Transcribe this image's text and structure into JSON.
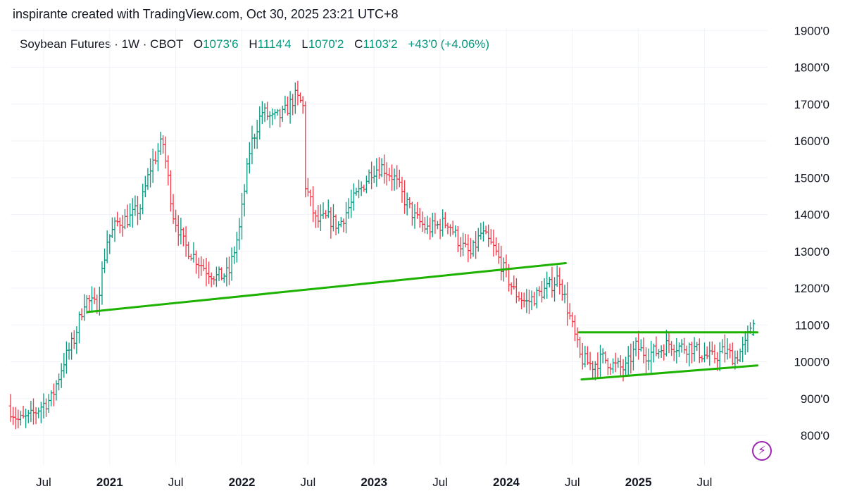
{
  "header": {
    "text": "inspirante created with TradingView.com, Oct 30, 2025 23:21 UTC+8"
  },
  "legend": {
    "symbol": "Soybean Futures · 1W · CBOT",
    "open_label": "O",
    "open": "1073'6",
    "high_label": "H",
    "high": "1114'4",
    "low_label": "L",
    "low": "1070'2",
    "close_label": "C",
    "close": "1103'2",
    "change": "+43'0 (+4.06%)"
  },
  "colors": {
    "up": "#089981",
    "down": "#f23645",
    "trendline": "#1db100",
    "grid": "#f0f3fa",
    "badge": "#9c27b0"
  },
  "icons": {
    "badge": "lightning-icon"
  },
  "chart_data": {
    "type": "ohlc",
    "title": "Soybean Futures · 1W · CBOT",
    "y_axis": {
      "side": "right",
      "range": [
        750,
        1900
      ],
      "ticks": [
        "800'0",
        "900'0",
        "1000'0",
        "1100'0",
        "1200'0",
        "1300'0",
        "1400'0",
        "1500'0",
        "1600'0",
        "1700'0",
        "1800'0",
        "1900'0"
      ],
      "tick_values": [
        800,
        900,
        1000,
        1100,
        1200,
        1300,
        1400,
        1500,
        1600,
        1700,
        1800,
        1900
      ]
    },
    "x_axis": {
      "range": [
        2020.25,
        2025.95
      ],
      "ticks": [
        {
          "label": "Jul",
          "t": 2020.5,
          "year": false
        },
        {
          "label": "2021",
          "t": 2021.0,
          "year": true
        },
        {
          "label": "Jul",
          "t": 2021.5,
          "year": false
        },
        {
          "label": "2022",
          "t": 2022.0,
          "year": true
        },
        {
          "label": "Jul",
          "t": 2022.5,
          "year": false
        },
        {
          "label": "2023",
          "t": 2023.0,
          "year": true
        },
        {
          "label": "Jul",
          "t": 2023.5,
          "year": false
        },
        {
          "label": "2024",
          "t": 2024.0,
          "year": true
        },
        {
          "label": "Jul",
          "t": 2024.5,
          "year": false
        },
        {
          "label": "2025",
          "t": 2025.0,
          "year": true
        },
        {
          "label": "Jul",
          "t": 2025.5,
          "year": false
        }
      ]
    },
    "price_path": [
      [
        2020.25,
        880
      ],
      [
        2020.33,
        840
      ],
      [
        2020.42,
        850
      ],
      [
        2020.5,
        880
      ],
      [
        2020.58,
        900
      ],
      [
        2020.67,
        1000
      ],
      [
        2020.75,
        1060
      ],
      [
        2020.83,
        1170
      ],
      [
        2020.92,
        1150
      ],
      [
        2021.0,
        1330
      ],
      [
        2021.08,
        1380
      ],
      [
        2021.17,
        1390
      ],
      [
        2021.25,
        1420
      ],
      [
        2021.33,
        1530
      ],
      [
        2021.42,
        1600
      ],
      [
        2021.5,
        1400
      ],
      [
        2021.58,
        1320
      ],
      [
        2021.67,
        1280
      ],
      [
        2021.75,
        1250
      ],
      [
        2021.83,
        1230
      ],
      [
        2021.92,
        1240
      ],
      [
        2022.0,
        1360
      ],
      [
        2022.08,
        1580
      ],
      [
        2022.17,
        1680
      ],
      [
        2022.25,
        1660
      ],
      [
        2022.33,
        1670
      ],
      [
        2022.42,
        1720
      ],
      [
        2022.48,
        1700
      ],
      [
        2022.5,
        1480
      ],
      [
        2022.58,
        1380
      ],
      [
        2022.67,
        1390
      ],
      [
        2022.75,
        1370
      ],
      [
        2022.83,
        1420
      ],
      [
        2022.92,
        1470
      ],
      [
        2023.0,
        1520
      ],
      [
        2023.08,
        1530
      ],
      [
        2023.17,
        1500
      ],
      [
        2023.25,
        1440
      ],
      [
        2023.33,
        1390
      ],
      [
        2023.42,
        1360
      ],
      [
        2023.5,
        1370
      ],
      [
        2023.58,
        1380
      ],
      [
        2023.67,
        1320
      ],
      [
        2023.75,
        1290
      ],
      [
        2023.83,
        1350
      ],
      [
        2023.92,
        1310
      ],
      [
        2024.0,
        1250
      ],
      [
        2024.08,
        1190
      ],
      [
        2024.17,
        1160
      ],
      [
        2024.25,
        1180
      ],
      [
        2024.33,
        1200
      ],
      [
        2024.42,
        1230
      ],
      [
        2024.5,
        1120
      ],
      [
        2024.58,
        1010
      ],
      [
        2024.67,
        990
      ],
      [
        2024.75,
        1010
      ],
      [
        2024.83,
        990
      ],
      [
        2024.92,
        980
      ],
      [
        2025.0,
        1040
      ],
      [
        2025.08,
        1020
      ],
      [
        2025.17,
        1030
      ],
      [
        2025.25,
        1050
      ],
      [
        2025.33,
        1040
      ],
      [
        2025.42,
        1040
      ],
      [
        2025.5,
        1020
      ],
      [
        2025.58,
        1010
      ],
      [
        2025.67,
        1030
      ],
      [
        2025.75,
        1010
      ],
      [
        2025.83,
        1045
      ],
      [
        2025.87,
        1103
      ]
    ],
    "last_bar": {
      "open": 1073.75,
      "high": 1114.5,
      "low": 1070.25,
      "close": 1103.25
    },
    "trendlines": [
      {
        "name": "neckline",
        "from": [
          2020.83,
          1135
        ],
        "to": [
          2024.45,
          1268
        ]
      },
      {
        "name": "range-top",
        "from": [
          2024.55,
          1080
        ],
        "to": [
          2025.9,
          1080
        ]
      },
      {
        "name": "range-bottom",
        "from": [
          2024.57,
          952
        ],
        "to": [
          2025.9,
          990
        ]
      }
    ]
  }
}
